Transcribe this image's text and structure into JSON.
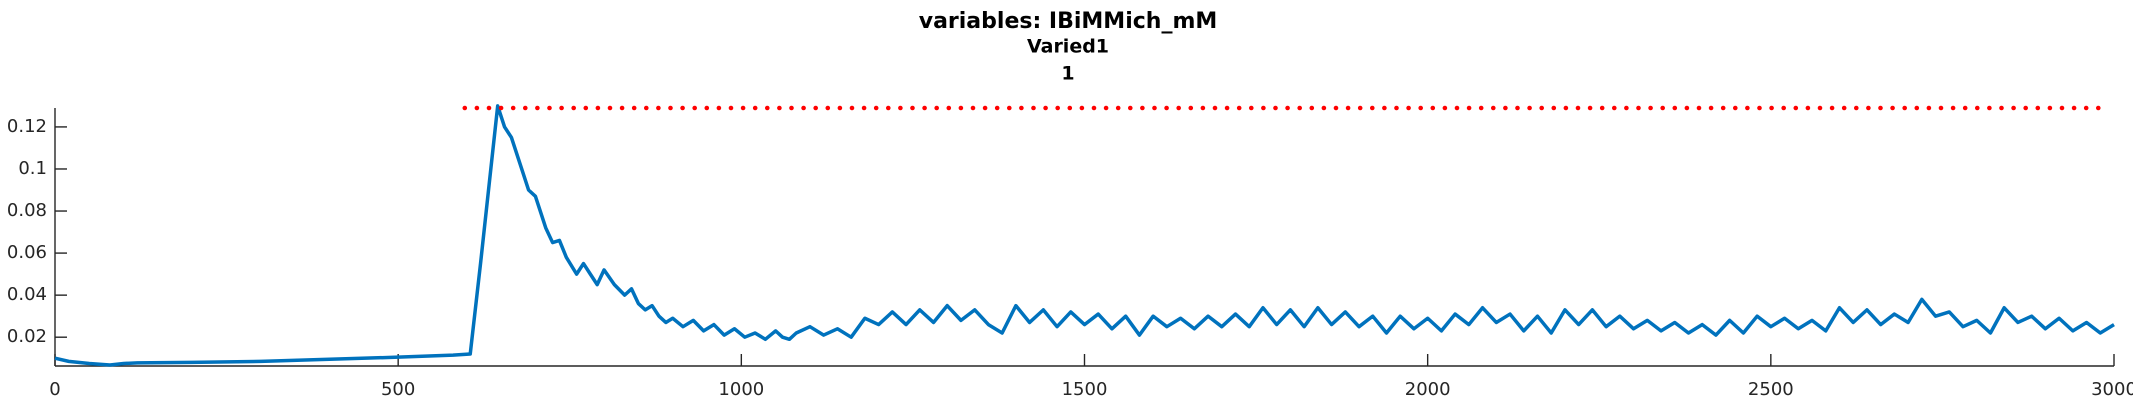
{
  "chart_data": {
    "type": "line",
    "title": "variables: IBiMMich_mM",
    "subtitle": "Varied1",
    "subtitle2": "1",
    "xlim": [
      0,
      3000
    ],
    "xticks": [
      0,
      500,
      1000,
      1500,
      2000,
      2500,
      3000
    ],
    "ylim": [
      0.0063,
      0.129
    ],
    "yticks": [
      0.02,
      0.04,
      0.06,
      0.08,
      0.1,
      0.12
    ],
    "series": [
      {
        "color": "#0072bd",
        "x": [
          0,
          20,
          50,
          80,
          100,
          120,
          200,
          300,
          400,
          500,
          580,
          605,
          620,
          635,
          645,
          655,
          665,
          680,
          690,
          700,
          715,
          725,
          735,
          745,
          760,
          770,
          780,
          790,
          800,
          815,
          830,
          840,
          850,
          860,
          870,
          880,
          890,
          900,
          915,
          930,
          945,
          960,
          975,
          990,
          1005,
          1020,
          1035,
          1050,
          1060,
          1070,
          1080,
          1100,
          1120,
          1140,
          1160,
          1180,
          1200,
          1220,
          1240,
          1260,
          1280,
          1300,
          1320,
          1340,
          1360,
          1380,
          1400,
          1420,
          1440,
          1460,
          1480,
          1500,
          1520,
          1540,
          1560,
          1580,
          1600,
          1620,
          1640,
          1660,
          1680,
          1700,
          1720,
          1740,
          1760,
          1780,
          1800,
          1820,
          1840,
          1860,
          1880,
          1900,
          1920,
          1940,
          1960,
          1980,
          2000,
          2020,
          2040,
          2060,
          2080,
          2100,
          2120,
          2140,
          2160,
          2180,
          2200,
          2220,
          2240,
          2260,
          2280,
          2300,
          2320,
          2340,
          2360,
          2380,
          2400,
          2420,
          2440,
          2460,
          2480,
          2500,
          2520,
          2540,
          2560,
          2580,
          2600,
          2620,
          2640,
          2660,
          2680,
          2700,
          2720,
          2740,
          2760,
          2780,
          2800,
          2820,
          2840,
          2860,
          2880,
          2900,
          2920,
          2940,
          2960,
          2980,
          3000
        ],
        "values": [
          0.01,
          0.0085,
          0.0075,
          0.0068,
          0.0075,
          0.0078,
          0.008,
          0.0085,
          0.0095,
          0.0105,
          0.0115,
          0.012,
          0.055,
          0.1,
          0.13,
          0.12,
          0.115,
          0.1,
          0.09,
          0.087,
          0.072,
          0.065,
          0.066,
          0.058,
          0.05,
          0.055,
          0.05,
          0.045,
          0.052,
          0.045,
          0.04,
          0.043,
          0.036,
          0.033,
          0.035,
          0.03,
          0.027,
          0.029,
          0.025,
          0.028,
          0.023,
          0.026,
          0.021,
          0.024,
          0.02,
          0.022,
          0.019,
          0.023,
          0.02,
          0.019,
          0.022,
          0.025,
          0.021,
          0.024,
          0.02,
          0.029,
          0.026,
          0.032,
          0.026,
          0.033,
          0.027,
          0.035,
          0.028,
          0.033,
          0.026,
          0.022,
          0.035,
          0.027,
          0.033,
          0.025,
          0.032,
          0.026,
          0.031,
          0.024,
          0.03,
          0.021,
          0.03,
          0.025,
          0.029,
          0.024,
          0.03,
          0.025,
          0.031,
          0.025,
          0.034,
          0.026,
          0.033,
          0.025,
          0.034,
          0.026,
          0.032,
          0.025,
          0.03,
          0.022,
          0.03,
          0.024,
          0.029,
          0.023,
          0.031,
          0.026,
          0.034,
          0.027,
          0.031,
          0.023,
          0.03,
          0.022,
          0.033,
          0.026,
          0.033,
          0.025,
          0.03,
          0.024,
          0.028,
          0.023,
          0.027,
          0.022,
          0.026,
          0.021,
          0.028,
          0.022,
          0.03,
          0.025,
          0.029,
          0.024,
          0.028,
          0.023,
          0.034,
          0.027,
          0.033,
          0.026,
          0.031,
          0.027,
          0.038,
          0.03,
          0.032,
          0.025,
          0.028,
          0.022,
          0.034,
          0.027,
          0.03,
          0.024,
          0.029,
          0.023,
          0.027,
          0.022,
          0.026
        ]
      },
      {
        "color": "#ff0000",
        "style": "dotted",
        "x": [
          597,
          2988
        ],
        "values": [
          0.129,
          0.129
        ]
      }
    ]
  }
}
